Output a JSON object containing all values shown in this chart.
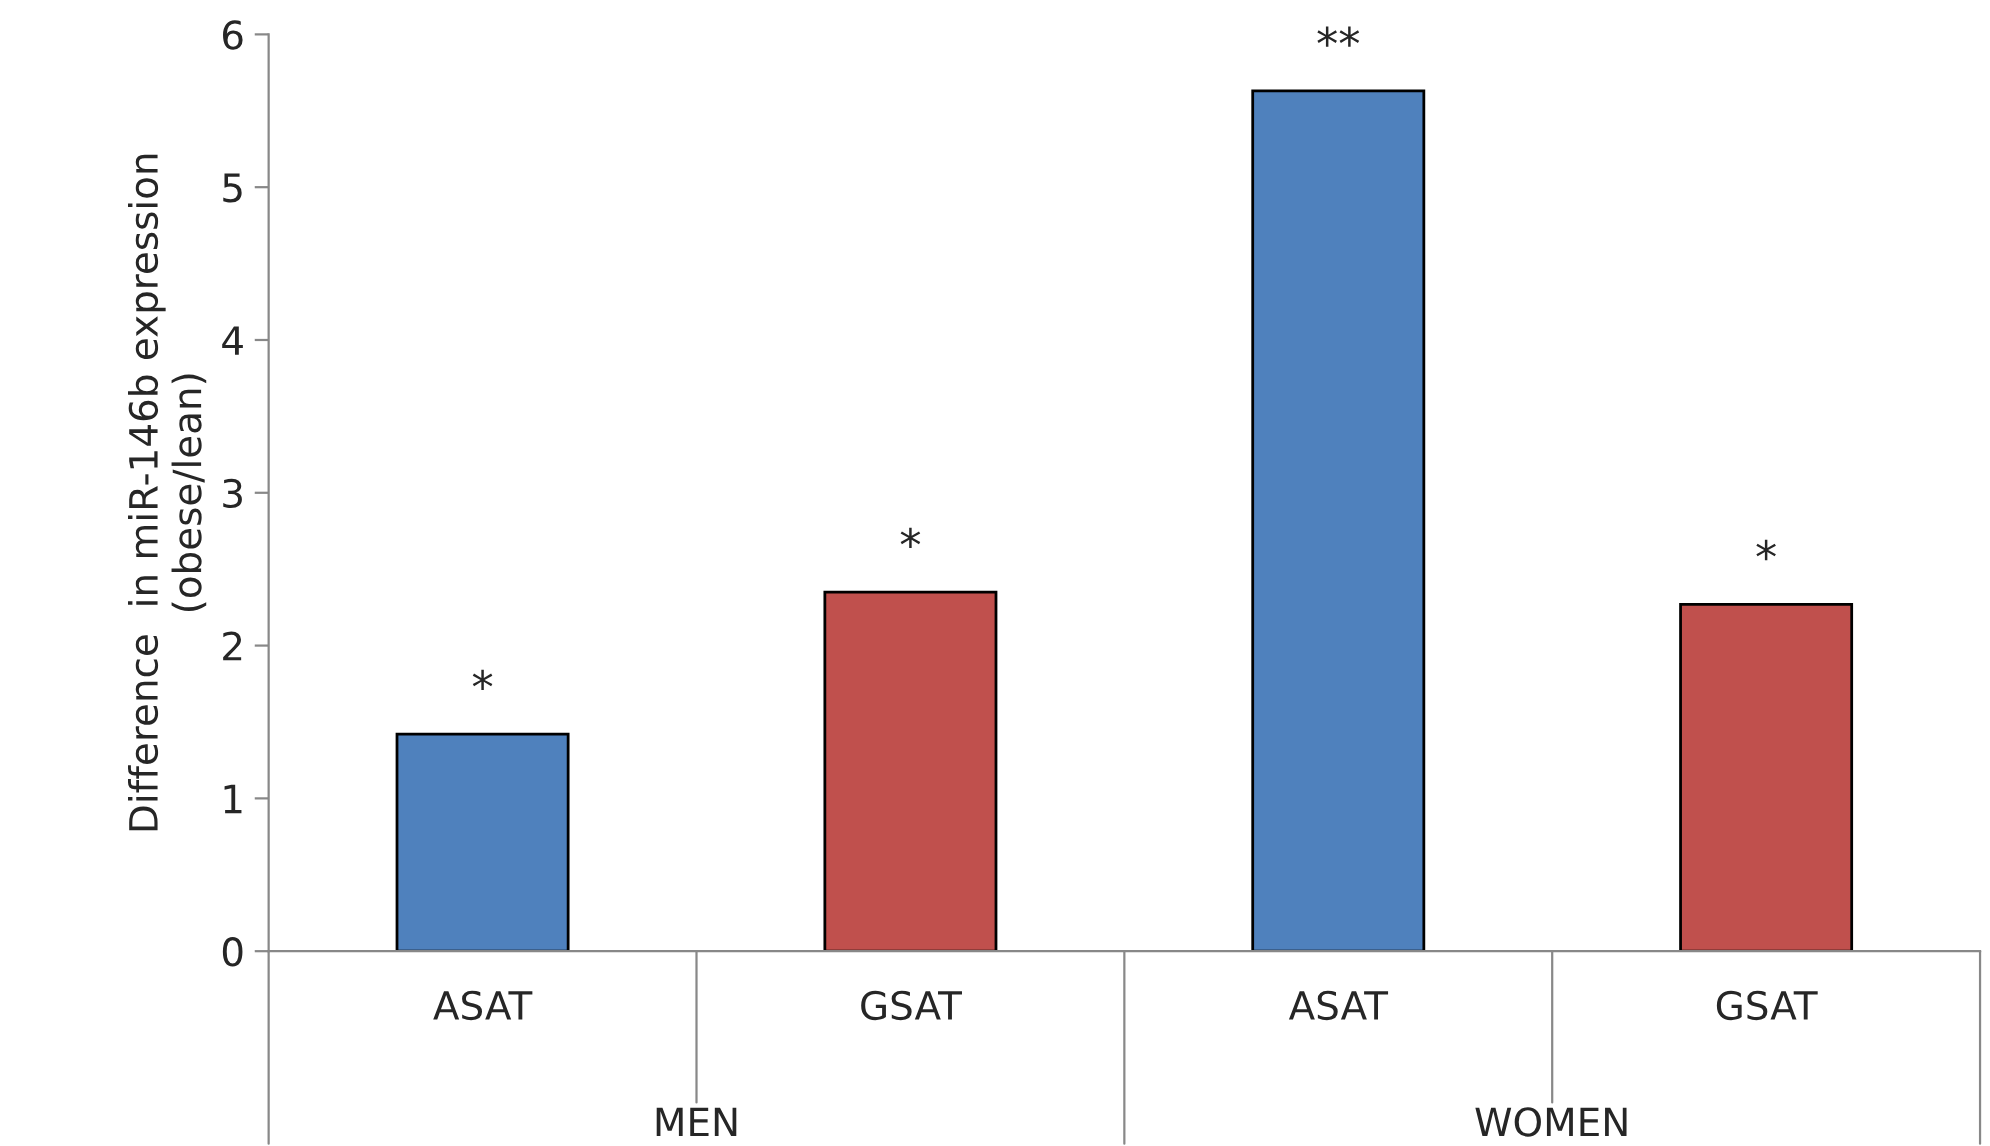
{
  "chart_data": {
    "type": "bar",
    "ylabel": "Difference  in miR-146b expression\n(obese/lean)",
    "categories": [
      "ASAT",
      "GSAT",
      "ASAT",
      "GSAT"
    ],
    "values": [
      1.42,
      2.35,
      5.63,
      2.27
    ],
    "colors": [
      "#4f81bd",
      "#c0504d",
      "#4f81bd",
      "#c0504d"
    ],
    "value_labels": [
      "*",
      "*",
      "**",
      "*"
    ],
    "annotations": [
      "MEN",
      "WOMEN"
    ],
    "ylim": [
      0,
      6
    ],
    "yticks": [
      0,
      1,
      2,
      3,
      4,
      5,
      6
    ],
    "grid": false
  }
}
